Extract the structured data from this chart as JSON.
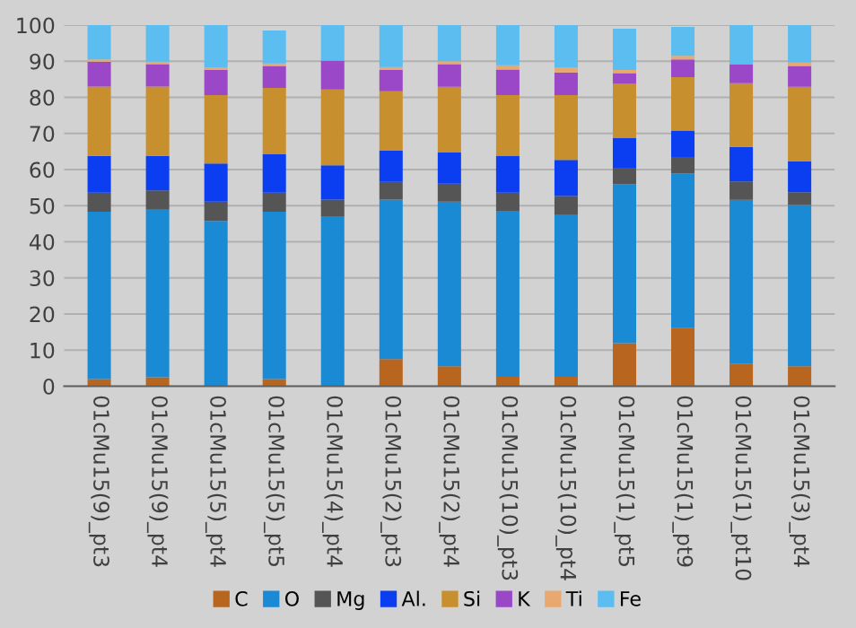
{
  "chart_data": {
    "type": "bar",
    "stacked": true,
    "categories": [
      "01cMu15(9)_pt3",
      "01cMu15(9)_pt4",
      "01cMu15(5)_pt4",
      "01cMu15(5)_pt5",
      "01cMu15(4)_pt4",
      "01cMu15(2)_pt3",
      "01cMu15(2)_pt4",
      "01cMu15(10)_pt3",
      "01cMu15(10)_pt4",
      "01cMu15(1)_pt5",
      "01cMu15(1)_pt9",
      "01cMu15(1)_pt10",
      "01cMu15(3)_pt4"
    ],
    "series": [
      {
        "name": "C",
        "color": "#b8651f",
        "values": [
          2,
          2.5,
          0,
          2,
          0,
          7.5,
          5.5,
          2.6,
          2.6,
          11.9,
          16.1,
          6.3,
          5.5
        ]
      },
      {
        "name": "O",
        "color": "#1a8ad4",
        "values": [
          46.3,
          46.4,
          45.8,
          46.3,
          47.1,
          44.2,
          45.6,
          46,
          44.8,
          44,
          42.8,
          45.3,
          44.7
        ]
      },
      {
        "name": "Mg",
        "color": "#555555",
        "values": [
          5.3,
          5.3,
          5.3,
          5.3,
          4.6,
          4.9,
          5,
          5,
          5.3,
          4.6,
          4.6,
          5.1,
          3.5
        ]
      },
      {
        "name": "Al.",
        "color": "#0a3ef0",
        "values": [
          10.2,
          9.6,
          10.6,
          10.6,
          9.5,
          8.6,
          8.6,
          10.1,
          10,
          8.2,
          7.3,
          9.6,
          8.6
        ]
      },
      {
        "name": "Si",
        "color": "#c88f2e",
        "values": [
          19.2,
          19.2,
          18.9,
          18.4,
          21,
          16.5,
          18.2,
          16.9,
          17.9,
          15,
          14.8,
          17.6,
          20.6
        ]
      },
      {
        "name": "K",
        "color": "#9a48c8",
        "values": [
          6.9,
          6.2,
          7,
          6.1,
          8,
          5.9,
          6.3,
          7.1,
          6.3,
          3,
          4.9,
          5.3,
          5.8
        ]
      },
      {
        "name": "Ti",
        "color": "#e8a870",
        "values": [
          0.6,
          0.7,
          0.6,
          0.7,
          0,
          0.8,
          0.8,
          1.2,
          1.3,
          0.9,
          1,
          0,
          0.9
        ]
      },
      {
        "name": "Fe",
        "color": "#5bbdf0",
        "values": [
          9.5,
          10.1,
          11.8,
          9.1,
          9.8,
          11.6,
          10,
          11.1,
          11.8,
          11.4,
          8,
          10.8,
          10.4
        ]
      }
    ],
    "ylim": [
      0,
      100
    ],
    "yticks": [
      0,
      10,
      20,
      30,
      40,
      50,
      60,
      70,
      80,
      90,
      100
    ],
    "grid": "y",
    "legend": "bottom"
  }
}
